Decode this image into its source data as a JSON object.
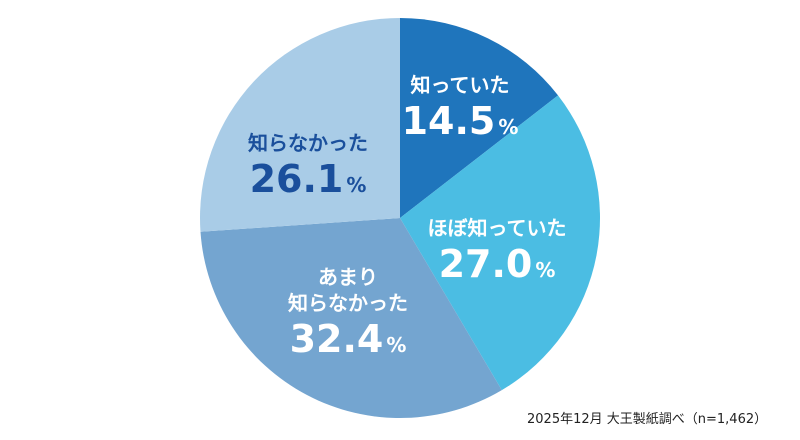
{
  "chart_data": {
    "type": "pie",
    "slices": [
      {
        "label": [
          "知っていた"
        ],
        "value": 14.5,
        "display": "14.5",
        "color": "#1f75bc",
        "text_color": "#ffffff"
      },
      {
        "label": [
          "ほぼ知っていた"
        ],
        "value": 27.0,
        "display": "27.0",
        "color": "#4bbde3",
        "text_color": "#ffffff"
      },
      {
        "label": [
          "あまり",
          "知らなかった"
        ],
        "value": 32.4,
        "display": "32.4",
        "color": "#74a5d0",
        "text_color": "#ffffff"
      },
      {
        "label": [
          "知らなかった"
        ],
        "value": 26.1,
        "display": "26.1",
        "color": "#a9cce7",
        "text_color": "#1a4f9c"
      }
    ],
    "unit": "%",
    "start": "top",
    "direction": "clockwise"
  },
  "footnote": "2025年12月 大王製紙調べ（n=1,462）"
}
